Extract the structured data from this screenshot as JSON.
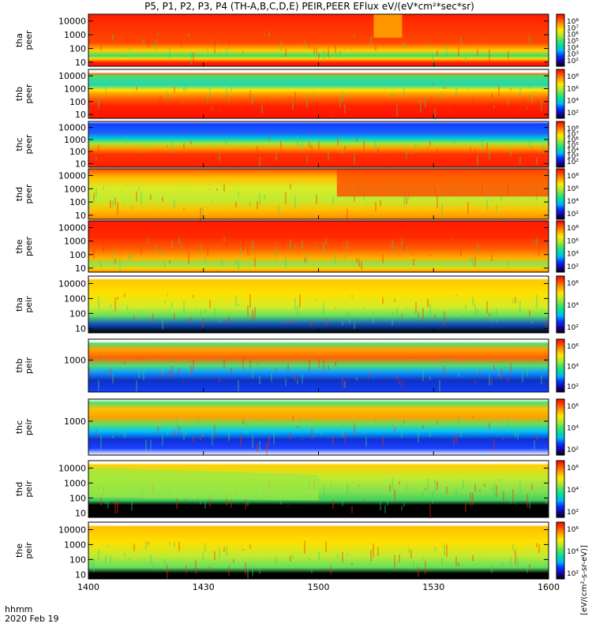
{
  "title": "P5, P1, P2, P3, P4 (TH-A,B,C,D,E) PEIR,PEER EFlux eV/(eV*cm²*sec*sr)",
  "x_axis": {
    "label_line1": "hhmm",
    "label_line2": "2020 Feb 19",
    "range_minutes": [
      0,
      120
    ],
    "ticks": [
      {
        "label": "1400",
        "minute": 0
      },
      {
        "label": "1430",
        "minute": 30
      },
      {
        "label": "1500",
        "minute": 60
      },
      {
        "label": "1530",
        "minute": 90
      },
      {
        "label": "1600",
        "minute": 120
      }
    ]
  },
  "colorbar": {
    "label": "[eV/(cm²-s-sr-eV)]",
    "palette": [
      "#000000",
      "#1a00b0",
      "#0038ff",
      "#00b4ff",
      "#00e0a0",
      "#4ee65a",
      "#b8ea28",
      "#ffe800",
      "#ffa000",
      "#ff5000",
      "#ff0000"
    ]
  },
  "chart_data": [
    {
      "type": "heatmap",
      "probe": "tha",
      "ylabel": "tha\npeer",
      "yticks": [
        "10000",
        "1000",
        "100",
        "10"
      ],
      "ylog": [
        0.7,
        4.5
      ],
      "cbticks": [
        "10⁸",
        "10⁷",
        "10⁶",
        "10⁵",
        "10⁴",
        "10³",
        "10²"
      ],
      "description_note": ""
    },
    {
      "type": "heatmap",
      "probe": "thb",
      "ylabel": "thb\npeer",
      "yticks": [
        "10000",
        "1000",
        "100",
        "10"
      ],
      "ylog": [
        0.7,
        4.5
      ],
      "cbticks": [
        "10⁸",
        "10⁶",
        "10⁴",
        "10²"
      ]
    },
    {
      "type": "heatmap",
      "probe": "thc",
      "ylabel": "thc\npeer",
      "yticks": [
        "10000",
        "1000",
        "100",
        "10"
      ],
      "ylog": [
        0.7,
        4.5
      ],
      "cbticks": [
        "10⁸",
        "10⁷",
        "10⁶",
        "10⁵",
        "10⁴",
        "10³",
        "10²"
      ]
    },
    {
      "type": "heatmap",
      "probe": "thd",
      "ylabel": "thd\npeer",
      "yticks": [
        "10000",
        "1000",
        "100",
        "10"
      ],
      "ylog": [
        0.7,
        4.5
      ],
      "cbticks": [
        "10⁸",
        "10⁶",
        "10⁴",
        "10²"
      ]
    },
    {
      "type": "heatmap",
      "probe": "the",
      "ylabel": "the\npeer",
      "yticks": [
        "10000",
        "1000",
        "100",
        "10"
      ],
      "ylog": [
        0.7,
        4.5
      ],
      "cbticks": [
        "10⁸",
        "10⁶",
        "10⁴",
        "10²"
      ]
    },
    {
      "type": "heatmap",
      "probe": "tha",
      "ylabel": "tha\npeir",
      "yticks": [
        "10000",
        "1000",
        "100",
        "10"
      ],
      "ylog": [
        0.7,
        4.5
      ],
      "cbticks": [
        "10⁶",
        "10⁴",
        "10²"
      ]
    },
    {
      "type": "heatmap",
      "probe": "thb",
      "ylabel": "thb\npeir",
      "yticks": [
        "1000"
      ],
      "ylog": [
        0.7,
        4.5
      ],
      "cbticks": [
        "10⁶",
        "10⁴",
        "10²"
      ]
    },
    {
      "type": "heatmap",
      "probe": "thc",
      "ylabel": "thc\npeir",
      "yticks": [
        "1000"
      ],
      "ylog": [
        0.7,
        4.5
      ],
      "cbticks": [
        "10⁶",
        "10⁴",
        "10²"
      ]
    },
    {
      "type": "heatmap",
      "probe": "thd",
      "ylabel": "thd\npeir",
      "yticks": [
        "10000",
        "1000",
        "100",
        "10"
      ],
      "ylog": [
        0.7,
        4.5
      ],
      "cbticks": [
        "10⁶",
        "10⁴",
        "10²"
      ]
    },
    {
      "type": "heatmap",
      "probe": "the",
      "ylabel": "the\npeir",
      "yticks": [
        "10000",
        "1000",
        "100",
        "10"
      ],
      "ylog": [
        0.7,
        4.5
      ],
      "cbticks": [
        "10⁶",
        "10⁴",
        "10²"
      ]
    }
  ]
}
